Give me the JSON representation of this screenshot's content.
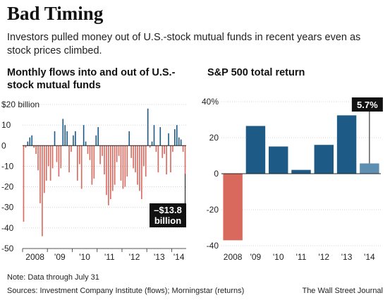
{
  "header": {
    "title": "Bad Timing",
    "subtitle": "Investors pulled money out of U.S.-stock mutual funds in recent years even as stock prices climbed."
  },
  "colors": {
    "positive": "#1d5a86",
    "negative": "#d9685d",
    "highlight": "#5f8fb0",
    "callout": "#111111"
  },
  "chart_data": [
    {
      "type": "bar",
      "title": "Monthly flows into and out of U.S.-stock mutual funds",
      "ylim": [
        -50,
        20
      ],
      "yticks": [
        20,
        10,
        0,
        -10,
        -20,
        -30,
        -40,
        -50
      ],
      "ytick_labels": [
        "$20 billion",
        "10",
        "0",
        "-10",
        "-20",
        "-30",
        "-40",
        "-50"
      ],
      "xtick_labels": [
        "2008",
        "'09",
        "'10",
        "'11",
        "'12",
        "'13",
        "'14"
      ],
      "period": "Jan 2008 - Jul 2014",
      "series": [
        {
          "values": [
            -37,
            -1,
            2,
            4,
            5,
            -1,
            -4,
            -12,
            -28,
            -44,
            -23,
            -17,
            -10,
            -17,
            -11,
            7,
            -8,
            -15,
            -11,
            13,
            10,
            7,
            -13,
            -3,
            5,
            7,
            -17,
            -9,
            -21,
            10,
            2,
            -4,
            -7,
            -19,
            -16,
            5,
            9,
            -9,
            -5,
            -14,
            -24,
            -29,
            -26,
            -22,
            -19,
            -8,
            -5,
            -17,
            -21,
            -20,
            -15,
            7,
            -6,
            -11,
            -13,
            -19,
            -22,
            -26,
            -10,
            -15,
            18,
            -1,
            2,
            10,
            -3,
            -13,
            9,
            -6,
            -4,
            -14,
            6,
            -13,
            -3,
            8,
            10,
            4,
            3,
            -3,
            -14
          ]
        }
      ],
      "annotation": {
        "line1": "–$13.8",
        "line2": "billion",
        "value": -13.8
      }
    },
    {
      "type": "bar",
      "title": "S&P 500 total return",
      "ylim": [
        -40,
        40
      ],
      "yticks": [
        40,
        20,
        0,
        -20,
        -40
      ],
      "ytick_labels": [
        "40%",
        "20",
        "0",
        "-20",
        "-40"
      ],
      "categories": [
        "2008",
        "'09",
        "'10",
        "'11",
        "'12",
        "'13",
        "'14"
      ],
      "values": [
        -37.0,
        26.5,
        15.1,
        2.1,
        16.0,
        32.4,
        5.7
      ],
      "annotation": {
        "label": "5.7%",
        "value": 5.7
      }
    }
  ],
  "footer": {
    "note": "Note: Data through July 31",
    "sources": "Sources: Investment Company Institute (flows); Morningstar (returns)",
    "credit": "The Wall Street Journal"
  }
}
